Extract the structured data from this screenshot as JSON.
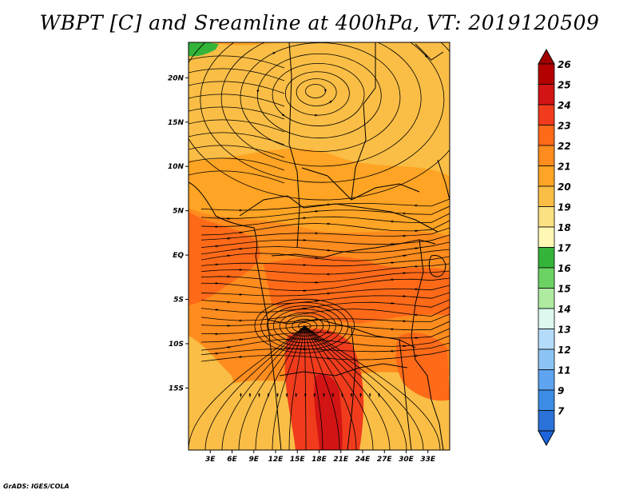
{
  "title": "WBPT [C] and Sreamline at 400hPa, VT: 2019120509",
  "credit": "GrADS: IGES/COLA",
  "map": {
    "lon_range": [
      0,
      36
    ],
    "lat_range": [
      -22,
      24
    ],
    "lon_ticks": [
      {
        "value": 3,
        "label": "3E"
      },
      {
        "value": 6,
        "label": "6E"
      },
      {
        "value": 9,
        "label": "9E"
      },
      {
        "value": 12,
        "label": "12E"
      },
      {
        "value": 15,
        "label": "15E"
      },
      {
        "value": 18,
        "label": "18E"
      },
      {
        "value": 21,
        "label": "21E"
      },
      {
        "value": 24,
        "label": "24E"
      },
      {
        "value": 27,
        "label": "27E"
      },
      {
        "value": 30,
        "label": "30E"
      },
      {
        "value": 33,
        "label": "33E"
      }
    ],
    "lat_ticks": [
      {
        "value": 20,
        "label": "20N"
      },
      {
        "value": 15,
        "label": "15N"
      },
      {
        "value": 10,
        "label": "10N"
      },
      {
        "value": 5,
        "label": "5N"
      },
      {
        "value": 0,
        "label": "EQ"
      },
      {
        "value": -5,
        "label": "5S"
      },
      {
        "value": -10,
        "label": "10S"
      },
      {
        "value": -15,
        "label": "15S"
      }
    ],
    "cyclone_center": {
      "lon": 17.5,
      "lat": 18.5
    },
    "convergence_center": {
      "lon": 16,
      "lat": -8
    }
  },
  "colorbar": {
    "levels": [
      {
        "label": "26",
        "color": "#b40000"
      },
      {
        "label": "25",
        "color": "#d21414"
      },
      {
        "label": "24",
        "color": "#f03c1c"
      },
      {
        "label": "23",
        "color": "#ff6a19"
      },
      {
        "label": "22",
        "color": "#ff8c1e"
      },
      {
        "label": "21",
        "color": "#ffa424"
      },
      {
        "label": "20",
        "color": "#fabe46"
      },
      {
        "label": "19",
        "color": "#fae182"
      },
      {
        "label": "18",
        "color": "#fff8b4"
      },
      {
        "label": "17",
        "color": "#34b439"
      },
      {
        "label": "16",
        "color": "#6cd264"
      },
      {
        "label": "15",
        "color": "#aeeaa0"
      },
      {
        "label": "14",
        "color": "#dcf8ef"
      },
      {
        "label": "13",
        "color": "#b4dcfa"
      },
      {
        "label": "12",
        "color": "#8cc4f5"
      },
      {
        "label": "11",
        "color": "#5ea4f0"
      },
      {
        "label": "9",
        "color": "#3c8ce6"
      },
      {
        "label": "7",
        "color": "#2a72d8"
      }
    ],
    "top_color": "#a00000",
    "bottom_color": "#1e64dc"
  }
}
